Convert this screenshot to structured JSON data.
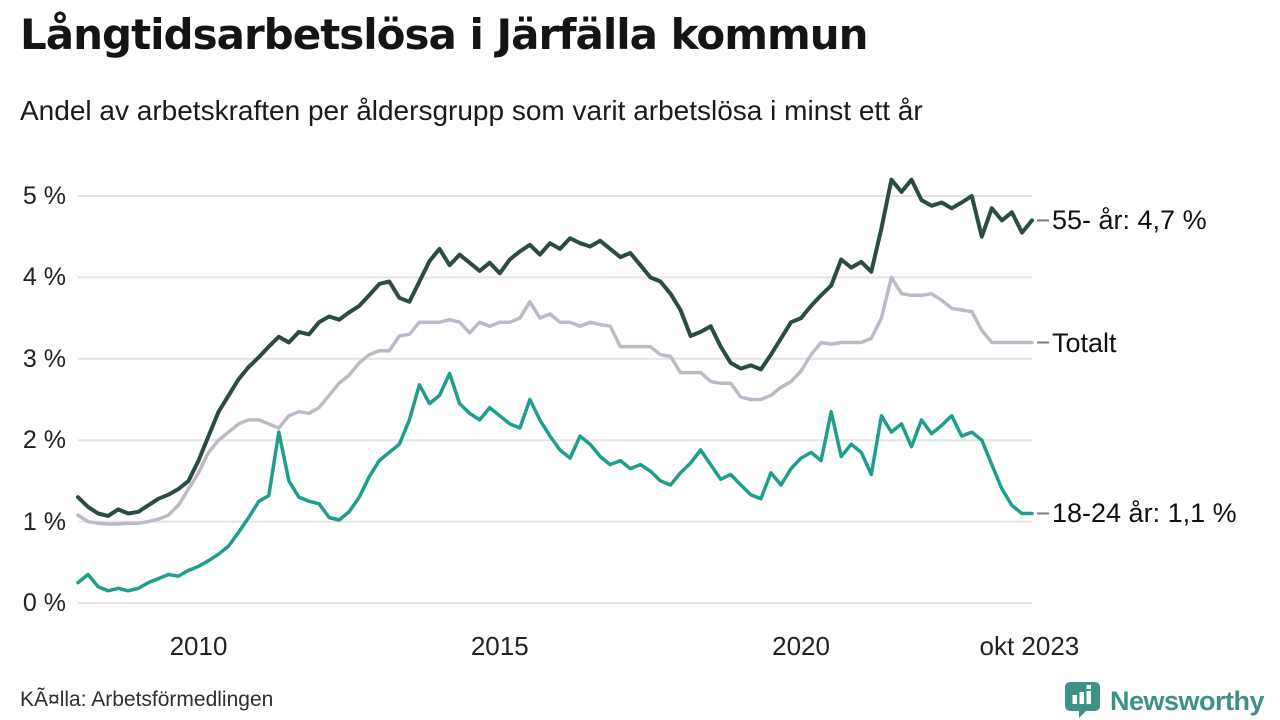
{
  "title": "Långtidsarbetslösa i Järfälla kommun",
  "subtitle": "Andel av arbetskraften per åldersgrupp som varit arbetslösa i minst ett år",
  "source": "KÃ¤lla: Arbetsförmedlingen",
  "branding": {
    "name": "Newsworthy",
    "icon": "newsworthy-speech-bubble-bar-chart-icon",
    "color": "#3E9187"
  },
  "colors": {
    "background": "#ffffff",
    "gridline": "#e4e4e4",
    "tick_dash": "#7a7a7a",
    "text_dark": "#141414"
  },
  "chart_data": {
    "type": "line",
    "title": "Långtidsarbetslösa i Järfälla kommun",
    "subtitle": "Andel av arbetskraften per åldersgrupp som varit arbetslösa i minst ett år",
    "grid": true,
    "legend_position": "right-inline-end-labels",
    "x_domain": [
      2008.0,
      2023.8333
    ],
    "x_step_years": 0.166667,
    "ylim": [
      0,
      5
    ],
    "y_ticks": [
      {
        "v": 0,
        "label": "0 %"
      },
      {
        "v": 1,
        "label": "1 %"
      },
      {
        "v": 2,
        "label": "2 %"
      },
      {
        "v": 3,
        "label": "3 %"
      },
      {
        "v": 4,
        "label": "4 %"
      },
      {
        "v": 5,
        "label": "5 %"
      }
    ],
    "x_ticks": [
      {
        "x": 2010,
        "label": "2010"
      },
      {
        "x": 2015,
        "label": "2015"
      },
      {
        "x": 2020,
        "label": "2020"
      },
      {
        "x": 2023.79,
        "label": "okt 2023"
      }
    ],
    "series": [
      {
        "name": "Totalt",
        "end_label": "Totalt",
        "end_value": 3.2,
        "color": "#BDBAC8",
        "stroke_width": 3.5,
        "values": [
          1.08,
          1.0,
          0.98,
          0.97,
          0.97,
          0.98,
          0.98,
          1.0,
          1.03,
          1.08,
          1.2,
          1.4,
          1.6,
          1.85,
          2.0,
          2.1,
          2.2,
          2.25,
          2.25,
          2.2,
          2.15,
          2.3,
          2.35,
          2.33,
          2.4,
          2.55,
          2.7,
          2.8,
          2.95,
          3.05,
          3.1,
          3.1,
          3.28,
          3.3,
          3.45,
          3.45,
          3.45,
          3.48,
          3.45,
          3.32,
          3.45,
          3.4,
          3.45,
          3.45,
          3.5,
          3.7,
          3.5,
          3.55,
          3.45,
          3.45,
          3.4,
          3.45,
          3.42,
          3.4,
          3.15,
          3.15,
          3.15,
          3.15,
          3.05,
          3.03,
          2.83,
          2.83,
          2.83,
          2.72,
          2.7,
          2.7,
          2.53,
          2.5,
          2.5,
          2.55,
          2.65,
          2.72,
          2.85,
          3.05,
          3.2,
          3.18,
          3.2,
          3.2,
          3.2,
          3.25,
          3.5,
          4.0,
          3.8,
          3.78,
          3.78,
          3.8,
          3.72,
          3.62,
          3.6,
          3.58,
          3.35,
          3.2,
          3.2,
          3.2,
          3.2,
          3.2
        ]
      },
      {
        "name": "18-24 år",
        "end_label": "18-24 år: 1,1 %",
        "end_value": 1.1,
        "color": "#1F9E8E",
        "stroke_width": 3.5,
        "values": [
          0.25,
          0.35,
          0.2,
          0.15,
          0.18,
          0.15,
          0.18,
          0.25,
          0.3,
          0.35,
          0.33,
          0.4,
          0.45,
          0.52,
          0.6,
          0.7,
          0.87,
          1.05,
          1.25,
          1.32,
          2.1,
          1.5,
          1.3,
          1.25,
          1.22,
          1.05,
          1.02,
          1.12,
          1.3,
          1.55,
          1.75,
          1.85,
          1.95,
          2.25,
          2.68,
          2.45,
          2.55,
          2.82,
          2.45,
          2.33,
          2.25,
          2.4,
          2.3,
          2.2,
          2.15,
          2.5,
          2.25,
          2.05,
          1.88,
          1.78,
          2.05,
          1.95,
          1.8,
          1.7,
          1.75,
          1.65,
          1.7,
          1.62,
          1.5,
          1.45,
          1.6,
          1.72,
          1.88,
          1.7,
          1.52,
          1.58,
          1.45,
          1.33,
          1.28,
          1.6,
          1.45,
          1.65,
          1.78,
          1.85,
          1.75,
          2.35,
          1.8,
          1.95,
          1.85,
          1.58,
          2.3,
          2.1,
          2.2,
          1.92,
          2.25,
          2.08,
          2.18,
          2.3,
          2.05,
          2.1,
          2.0,
          1.7,
          1.4,
          1.2,
          1.1,
          1.1
        ]
      },
      {
        "name": "55- år",
        "end_label": "55- år: 4,7 %",
        "end_value": 4.7,
        "color": "#2B4C41",
        "stroke_width": 4,
        "values": [
          1.3,
          1.18,
          1.1,
          1.07,
          1.15,
          1.1,
          1.12,
          1.2,
          1.28,
          1.33,
          1.4,
          1.5,
          1.75,
          2.05,
          2.35,
          2.55,
          2.75,
          2.9,
          3.02,
          3.15,
          3.27,
          3.2,
          3.33,
          3.3,
          3.45,
          3.52,
          3.48,
          3.57,
          3.65,
          3.78,
          3.92,
          3.95,
          3.75,
          3.7,
          3.95,
          4.2,
          4.35,
          4.15,
          4.28,
          4.18,
          4.08,
          4.18,
          4.05,
          4.22,
          4.32,
          4.4,
          4.28,
          4.42,
          4.35,
          4.48,
          4.42,
          4.38,
          4.45,
          4.35,
          4.25,
          4.3,
          4.15,
          4.0,
          3.95,
          3.8,
          3.6,
          3.28,
          3.33,
          3.4,
          3.15,
          2.95,
          2.88,
          2.92,
          2.87,
          3.05,
          3.25,
          3.45,
          3.5,
          3.65,
          3.78,
          3.9,
          4.22,
          4.12,
          4.19,
          4.07,
          4.6,
          5.2,
          5.05,
          5.2,
          4.95,
          4.88,
          4.92,
          4.85,
          4.92,
          5.0,
          4.5,
          4.85,
          4.7,
          4.8,
          4.55,
          4.7
        ]
      }
    ]
  }
}
